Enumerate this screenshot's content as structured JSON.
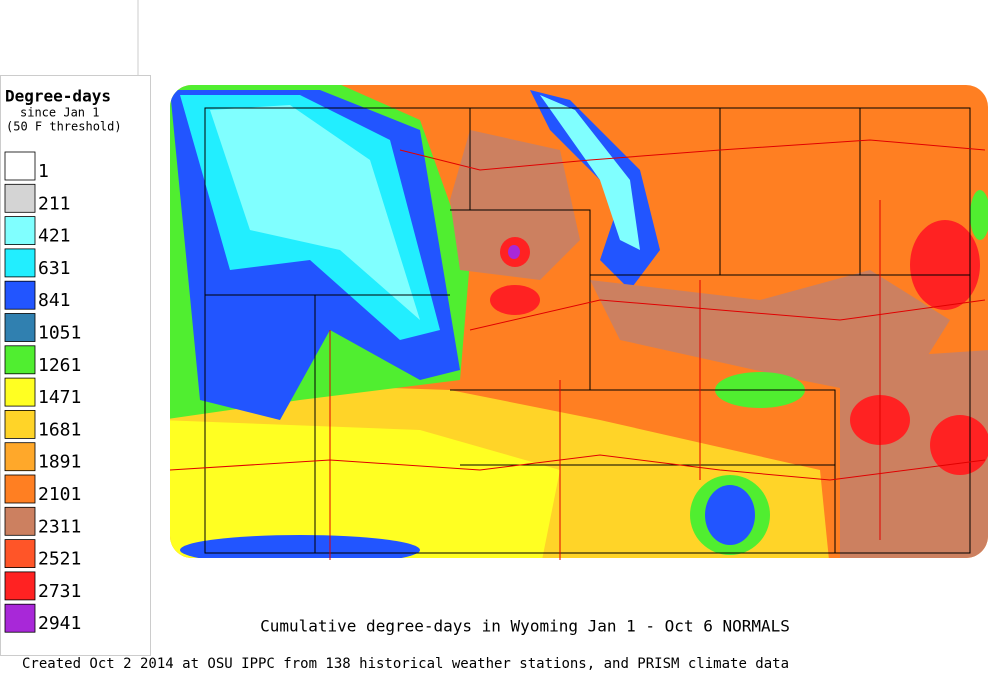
{
  "legend": {
    "title": "Degree-days",
    "subtitle": "since Jan 1",
    "note": "(50 F threshold)",
    "entries": [
      {
        "value": 1,
        "color": "#ffffff"
      },
      {
        "value": 211,
        "color": "#d4d4d4"
      },
      {
        "value": 421,
        "color": "#80ffff"
      },
      {
        "value": 631,
        "color": "#22eeff"
      },
      {
        "value": 841,
        "color": "#2255ff"
      },
      {
        "value": 1051,
        "color": "#3080b0"
      },
      {
        "value": 1261,
        "color": "#50ee30"
      },
      {
        "value": 1471,
        "color": "#ffff22"
      },
      {
        "value": 1681,
        "color": "#ffd428"
      },
      {
        "value": 1891,
        "color": "#ffa82a"
      },
      {
        "value": 2101,
        "color": "#ff7f22"
      },
      {
        "value": 2311,
        "color": "#cc8060"
      },
      {
        "value": 2521,
        "color": "#ff5528"
      },
      {
        "value": 2731,
        "color": "#ff2222"
      },
      {
        "value": 2941,
        "color": "#a828d8"
      }
    ]
  },
  "map": {
    "caption": "Cumulative degree-days in Wyoming  Jan 1 - Oct 6 NORMALS"
  },
  "footer": "Created Oct 2 2014 at OSU IPPC from 138 historical weather stations, and PRISM climate data"
}
